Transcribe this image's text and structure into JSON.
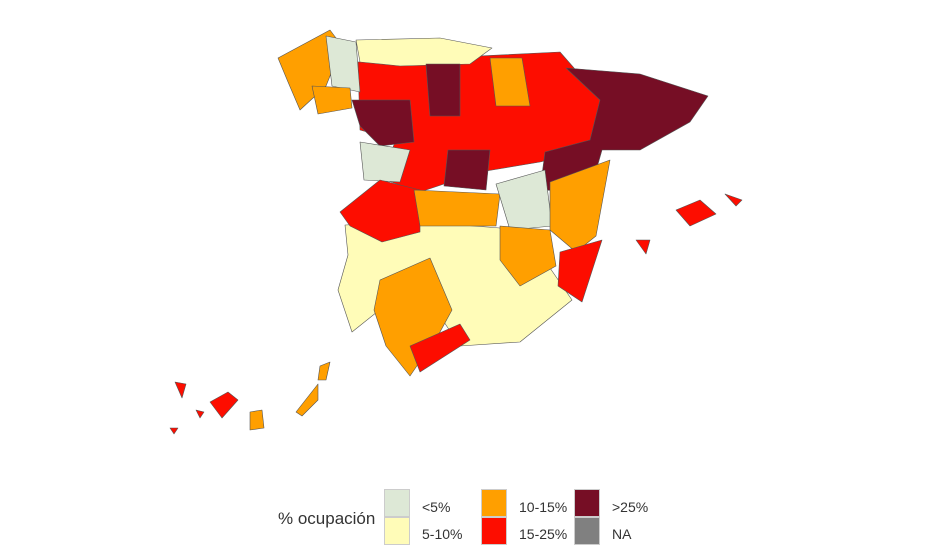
{
  "legend": {
    "title": "% ocupación",
    "items": [
      {
        "key": "lt5",
        "label": "<5%",
        "color": "#dde8d6"
      },
      {
        "key": "5to10",
        "label": "5-10%",
        "color": "#fffcb8"
      },
      {
        "key": "10to15",
        "label": "10-15%",
        "color": "#ff9f00"
      },
      {
        "key": "15to25",
        "label": "15-25%",
        "color": "#fd0d00"
      },
      {
        "key": "gt25",
        "label": ">25%",
        "color": "#760e25"
      },
      {
        "key": "na",
        "label": "NA",
        "color": "#808080"
      }
    ]
  }
}
